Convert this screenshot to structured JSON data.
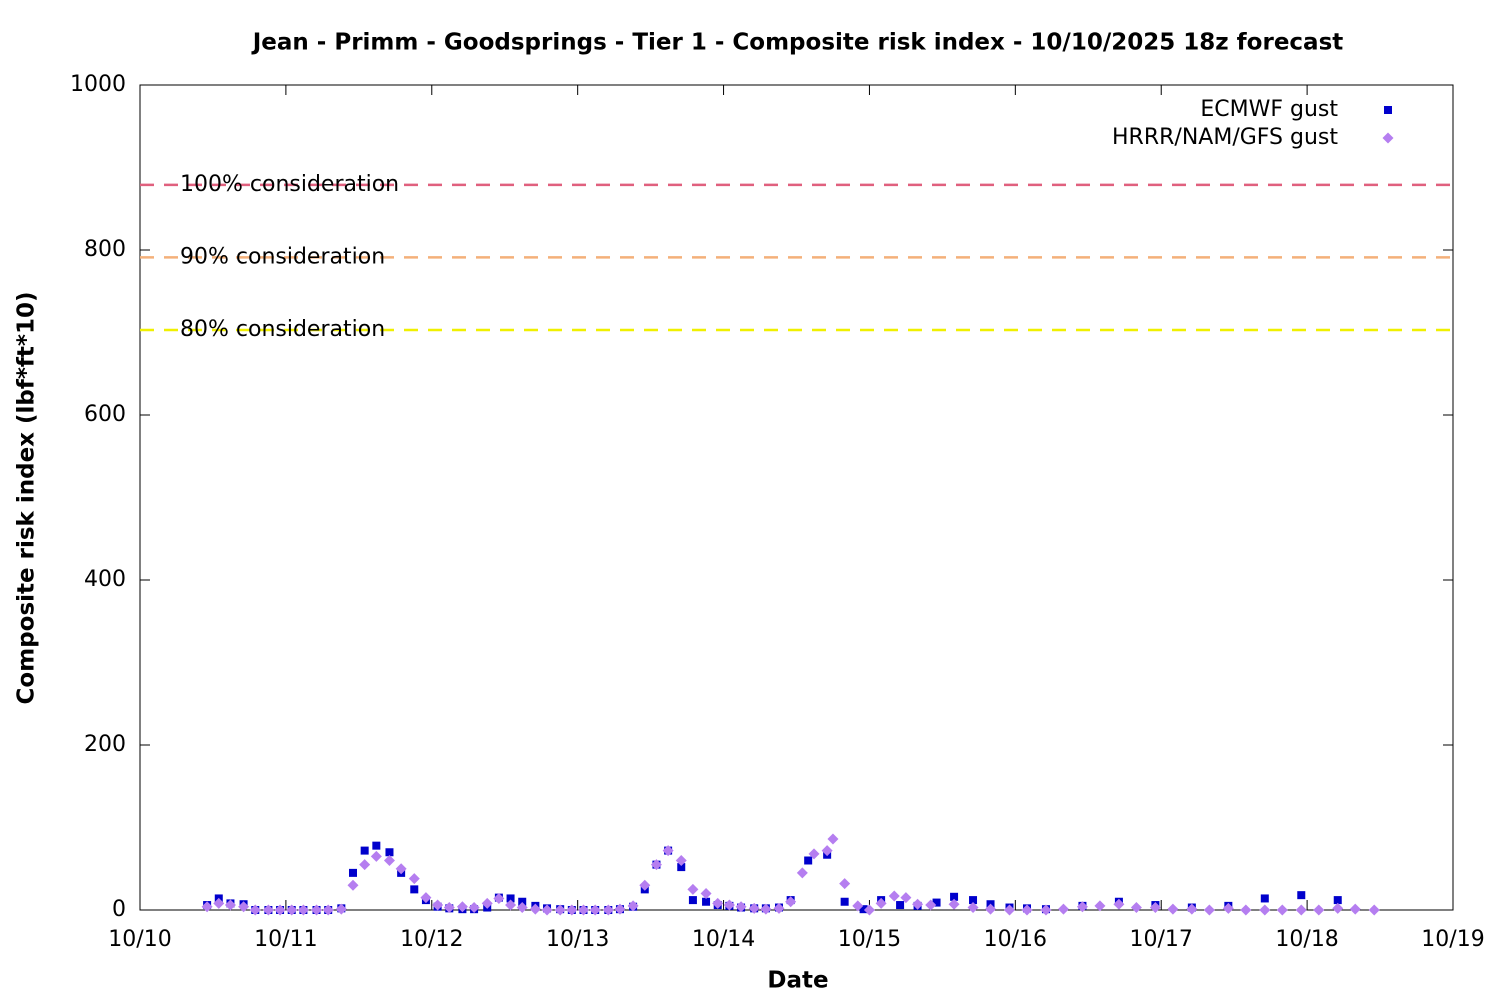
{
  "chart_data": {
    "type": "scatter",
    "title": "Jean - Primm - Goodsprings - Tier 1 - Composite risk index - 10/10/2025 18z forecast",
    "xlabel": "Date",
    "ylabel": "Composite risk index (lbf*ft*10)",
    "xlim": [
      0,
      9
    ],
    "xticks": [
      {
        "value": 0,
        "label": "10/10"
      },
      {
        "value": 1,
        "label": "10/11"
      },
      {
        "value": 2,
        "label": "10/12"
      },
      {
        "value": 3,
        "label": "10/13"
      },
      {
        "value": 4,
        "label": "10/14"
      },
      {
        "value": 5,
        "label": "10/15"
      },
      {
        "value": 6,
        "label": "10/16"
      },
      {
        "value": 7,
        "label": "10/17"
      },
      {
        "value": 8,
        "label": "10/18"
      },
      {
        "value": 9,
        "label": "10/19"
      }
    ],
    "ylim": [
      0,
      1000
    ],
    "yticks": [
      0,
      200,
      400,
      600,
      800,
      1000
    ],
    "grid": false,
    "legend": "top right",
    "thresholds": [
      {
        "label": "100% consideration",
        "value": 879,
        "color": "#e0607e"
      },
      {
        "label": "90% consideration",
        "value": 791,
        "color": "#f4b07a"
      },
      {
        "label": "80% consideration",
        "value": 703,
        "color": "#f0f000"
      }
    ],
    "series": [
      {
        "name": "ECMWF gust",
        "color": "#0000cc",
        "marker": "square",
        "x": [
          0.46,
          0.54,
          0.62,
          0.71,
          0.79,
          0.88,
          0.96,
          1.04,
          1.12,
          1.21,
          1.29,
          1.38,
          1.46,
          1.54,
          1.62,
          1.71,
          1.79,
          1.88,
          1.96,
          2.04,
          2.12,
          2.21,
          2.29,
          2.38,
          2.46,
          2.54,
          2.62,
          2.71,
          2.79,
          2.88,
          2.96,
          3.04,
          3.12,
          3.21,
          3.29,
          3.38,
          3.46,
          3.54,
          3.62,
          3.71,
          3.79,
          3.88,
          3.96,
          4.04,
          4.12,
          4.21,
          4.29,
          4.38,
          4.46,
          4.58,
          4.71,
          4.83,
          4.96,
          5.08,
          5.21,
          5.33,
          5.46,
          5.58,
          5.71,
          5.83,
          5.96,
          6.08,
          6.21,
          6.46,
          6.71,
          6.96,
          7.21,
          7.46,
          7.71,
          7.96,
          8.21
        ],
        "values": [
          6,
          14,
          8,
          7,
          0,
          0,
          0,
          0,
          0,
          0,
          0,
          2,
          45,
          72,
          78,
          70,
          45,
          25,
          12,
          4,
          2,
          1,
          1,
          3,
          15,
          14,
          10,
          5,
          2,
          1,
          0,
          0,
          0,
          0,
          1,
          4,
          25,
          55,
          72,
          52,
          12,
          10,
          6,
          5,
          3,
          2,
          2,
          3,
          12,
          60,
          67,
          10,
          1,
          12,
          6,
          5,
          9,
          16,
          12,
          7,
          3,
          2,
          1,
          5,
          10,
          6,
          3,
          5,
          14,
          18,
          12
        ]
      },
      {
        "name": "HRRR/NAM/GFS gust",
        "color": "#b57ef0",
        "marker": "diamond",
        "x": [
          0.46,
          0.54,
          0.62,
          0.71,
          0.79,
          0.88,
          0.96,
          1.04,
          1.12,
          1.21,
          1.29,
          1.38,
          1.46,
          1.54,
          1.62,
          1.71,
          1.79,
          1.88,
          1.96,
          2.04,
          2.12,
          2.21,
          2.29,
          2.38,
          2.46,
          2.54,
          2.62,
          2.71,
          2.79,
          2.88,
          2.96,
          3.04,
          3.12,
          3.21,
          3.29,
          3.38,
          3.46,
          3.54,
          3.62,
          3.71,
          3.79,
          3.88,
          3.96,
          4.04,
          4.12,
          4.21,
          4.29,
          4.38,
          4.46,
          4.54,
          4.62,
          4.71,
          4.75,
          4.83,
          4.92,
          5.0,
          5.08,
          5.17,
          5.25,
          5.33,
          5.42,
          5.58,
          5.71,
          5.83,
          5.96,
          6.08,
          6.21,
          6.33,
          6.46,
          6.58,
          6.71,
          6.83,
          6.96,
          7.08,
          7.21,
          7.33,
          7.46,
          7.58,
          7.71,
          7.83,
          7.96,
          8.08,
          8.21,
          8.33,
          8.46
        ],
        "values": [
          4,
          8,
          6,
          4,
          0,
          0,
          0,
          0,
          0,
          0,
          0,
          1,
          30,
          55,
          65,
          60,
          50,
          38,
          15,
          6,
          3,
          4,
          3,
          8,
          14,
          6,
          3,
          1,
          0,
          0,
          0,
          0,
          0,
          0,
          1,
          5,
          30,
          55,
          72,
          60,
          25,
          20,
          8,
          6,
          4,
          2,
          1,
          2,
          10,
          45,
          68,
          72,
          86,
          32,
          5,
          0,
          8,
          17,
          15,
          7,
          6,
          7,
          3,
          1,
          0,
          0,
          0,
          1,
          4,
          5,
          7,
          3,
          3,
          1,
          1,
          0,
          2,
          0,
          0,
          0,
          0,
          0,
          2,
          1,
          0
        ]
      }
    ]
  }
}
